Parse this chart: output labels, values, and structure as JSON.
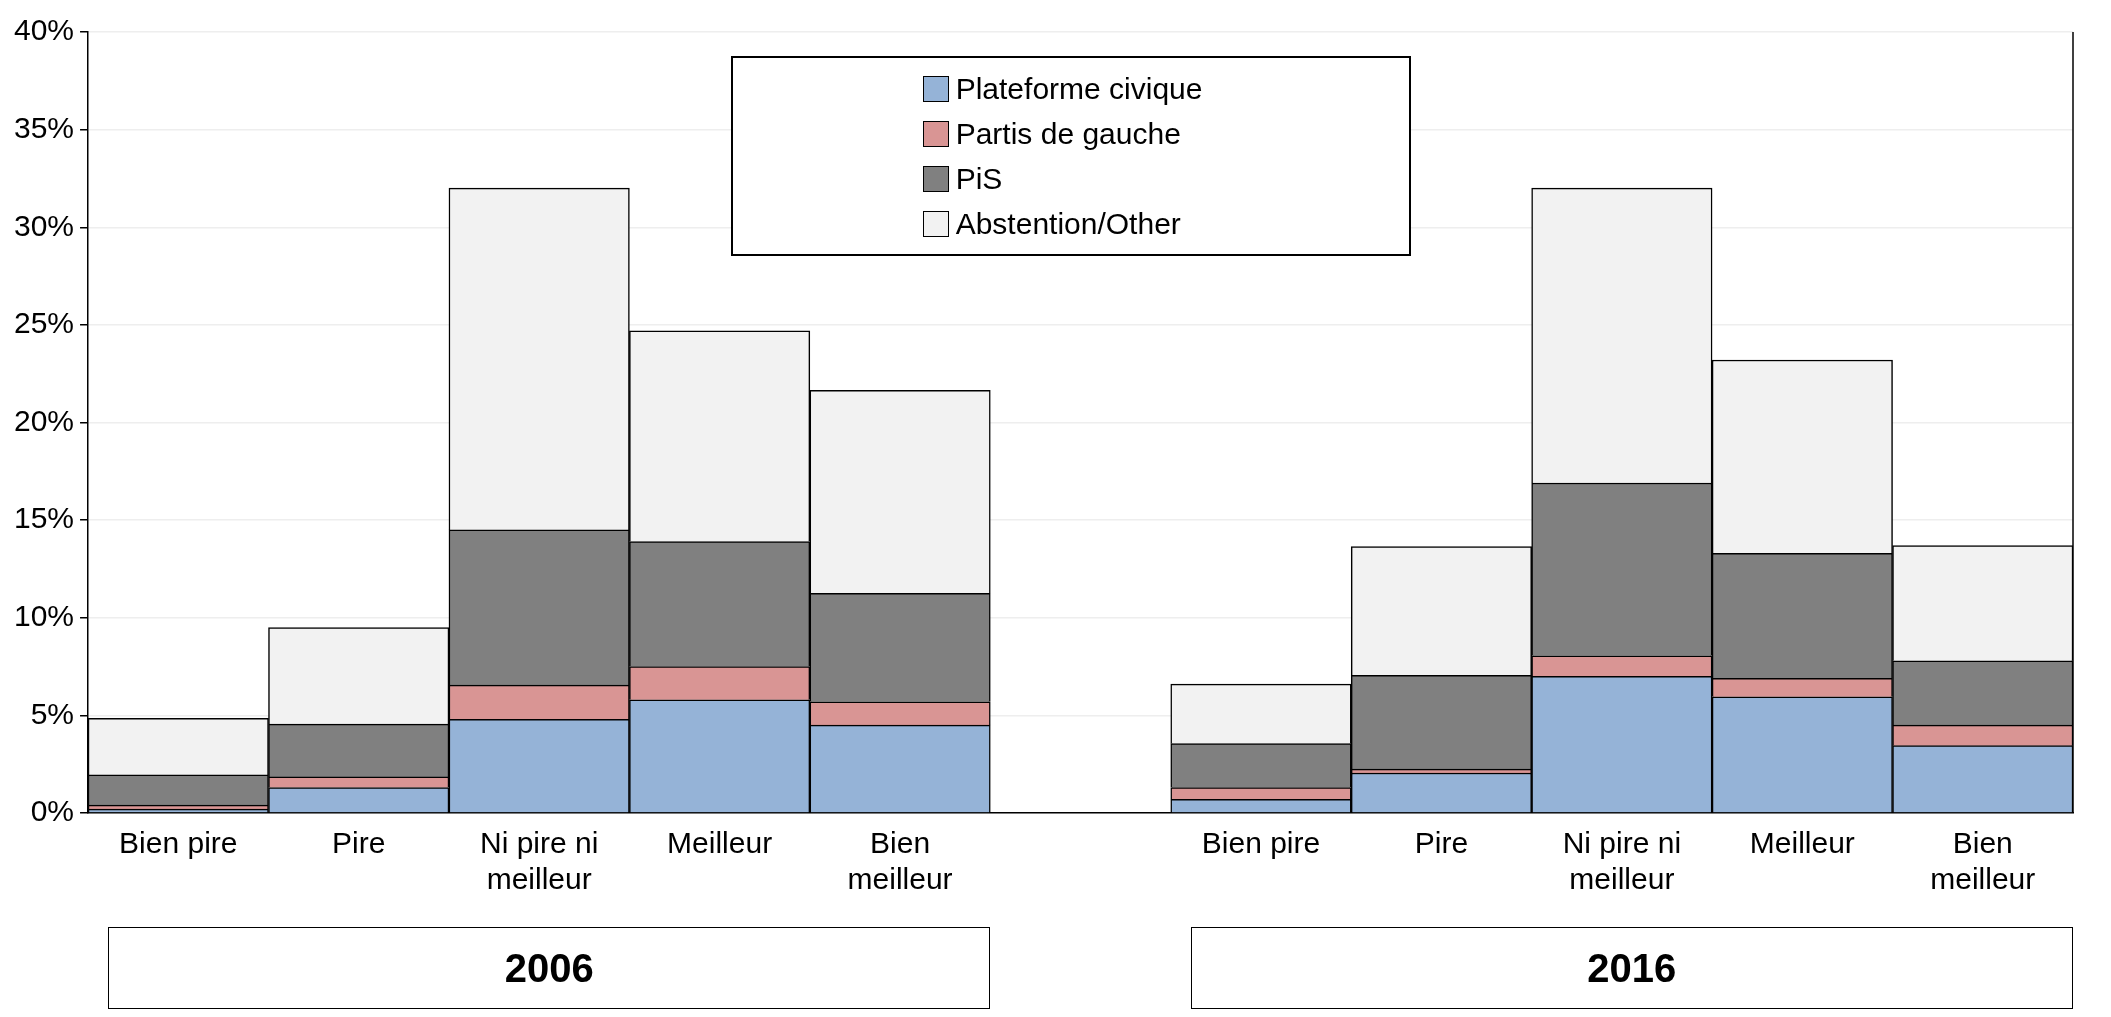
{
  "chart_data": {
    "type": "bar",
    "stacked": true,
    "categories": [
      "Bien pire",
      "Pire",
      "Ni pire ni meilleur",
      "Meilleur",
      "Bien meilleur",
      null,
      "Bien pire",
      "Pire",
      "Ni pire ni meilleur",
      "Meilleur",
      "Bien meilleur"
    ],
    "series": [
      {
        "name": "Plateforme civique",
        "color": "#95b3d7",
        "values": [
          0.2,
          1.3,
          4.8,
          5.8,
          4.5,
          null,
          0.7,
          2.05,
          7.0,
          5.95,
          3.45
        ]
      },
      {
        "name": "Partis de gauche",
        "color": "#d99594",
        "values": [
          0.2,
          0.55,
          1.75,
          1.7,
          1.2,
          null,
          0.6,
          0.2,
          1.05,
          0.95,
          1.05
        ]
      },
      {
        "name": "PiS",
        "color": "#808080",
        "values": [
          1.55,
          2.7,
          7.95,
          6.4,
          5.55,
          null,
          2.25,
          4.8,
          8.85,
          6.4,
          3.3
        ]
      },
      {
        "name": "Abstention/Other",
        "color": "#f2f2f2",
        "values": [
          2.9,
          4.95,
          17.5,
          10.8,
          10.4,
          null,
          3.05,
          6.6,
          15.1,
          9.9,
          5.9
        ]
      }
    ],
    "ylim": [
      0,
      40
    ],
    "yticks": [
      {
        "value": 0,
        "label": "0%"
      },
      {
        "value": 5,
        "label": "5%"
      },
      {
        "value": 10,
        "label": "10%"
      },
      {
        "value": 15,
        "label": "15%"
      },
      {
        "value": 20,
        "label": "20%"
      },
      {
        "value": 25,
        "label": "25%"
      },
      {
        "value": 30,
        "label": "30%"
      },
      {
        "value": 35,
        "label": "35%"
      },
      {
        "value": 40,
        "label": "40%"
      }
    ],
    "grid": "y",
    "legend": "top",
    "annotations": [
      {
        "text": "2006"
      },
      {
        "text": "2016"
      }
    ]
  }
}
